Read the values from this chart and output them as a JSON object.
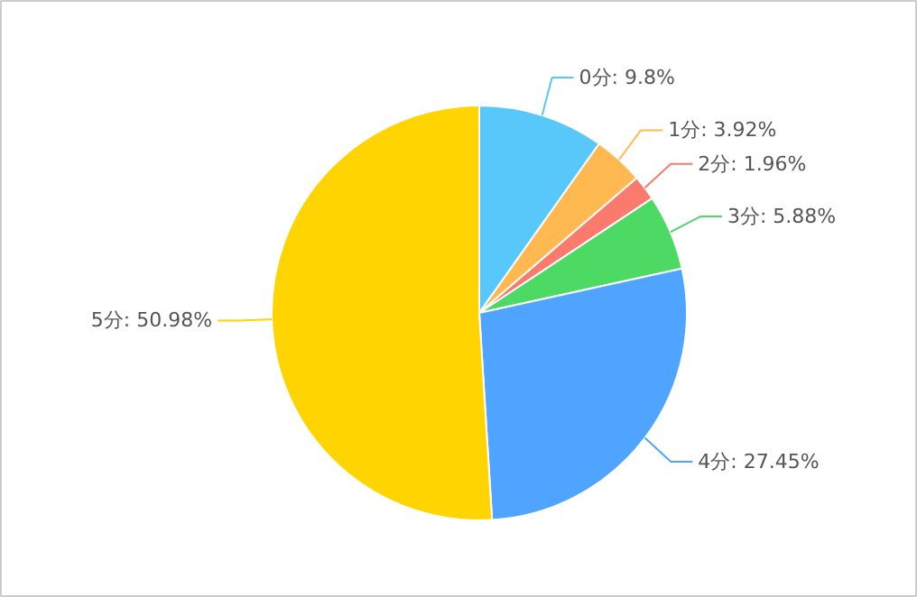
{
  "chart_data": {
    "type": "pie",
    "categories": [
      "0分",
      "1分",
      "2分",
      "3分",
      "4分",
      "5分"
    ],
    "values": [
      9.8,
      3.92,
      1.96,
      5.88,
      27.45,
      50.98
    ],
    "colors": [
      "#58c8fb",
      "#ffb950",
      "#fb7a6e",
      "#4cd964",
      "#4ea4ff",
      "#ffd400"
    ],
    "value_labels": [
      "9.8%",
      "3.92%",
      "1.96%",
      "5.88%",
      "27.45%",
      "50.98%"
    ]
  }
}
